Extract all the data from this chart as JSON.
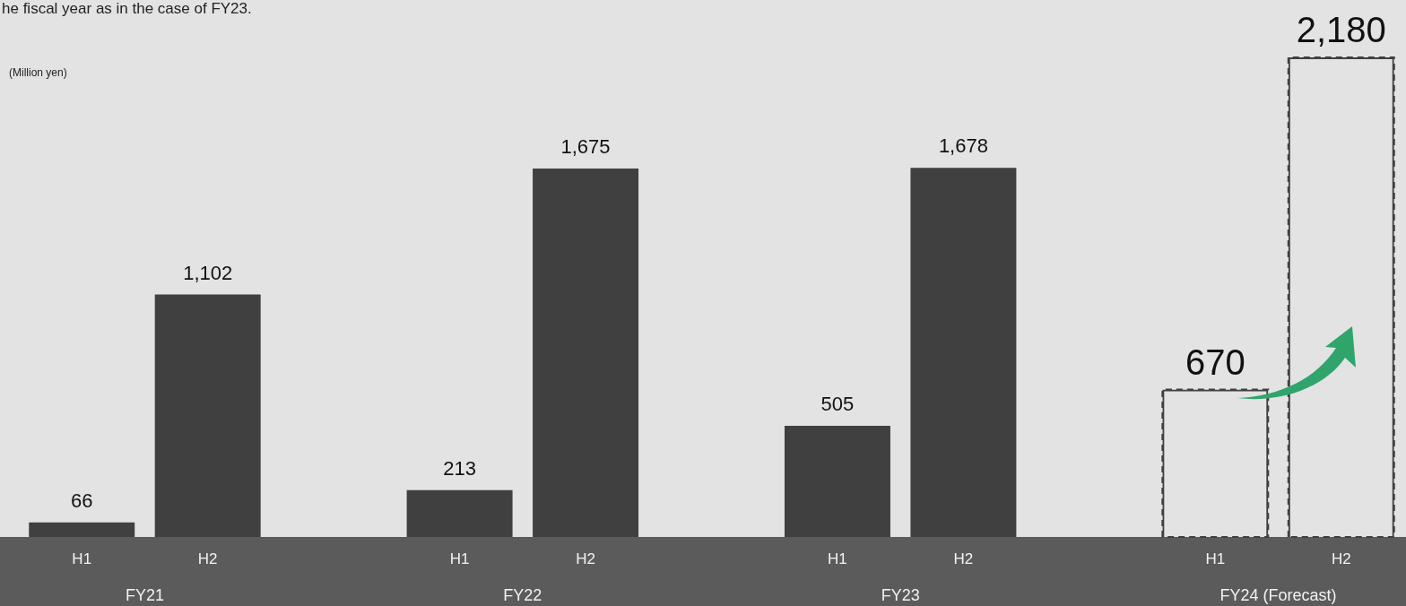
{
  "chart_data": {
    "type": "bar",
    "ylabel": "(Million yen)",
    "categories": [
      "H1",
      "H2",
      null,
      "H1",
      "H2",
      null,
      "H1",
      "H2",
      null,
      "H1",
      "H2"
    ],
    "series": [
      {
        "color": "#404040",
        "values": [
          66,
          1102,
          null,
          213,
          1675,
          null,
          505,
          1678,
          null,
          null,
          null
        ],
        "value_labels": [
          "66",
          "1,102",
          null,
          "213",
          "1,675",
          null,
          "505",
          "1,678",
          null,
          null,
          null
        ]
      },
      {
        "color": "#404040",
        "line_style": "dashed",
        "values": [
          null,
          null,
          null,
          null,
          null,
          null,
          null,
          null,
          null,
          670,
          2180
        ],
        "value_labels": [
          null,
          null,
          null,
          null,
          null,
          null,
          null,
          null,
          null,
          "670",
          "2,180"
        ]
      }
    ],
    "annotations": [
      "he fiscal year as in the case of FY23.",
      "FY21",
      "FY22",
      "FY23",
      "FY24 (Forecast)"
    ],
    "grid": false,
    "legend": false
  }
}
